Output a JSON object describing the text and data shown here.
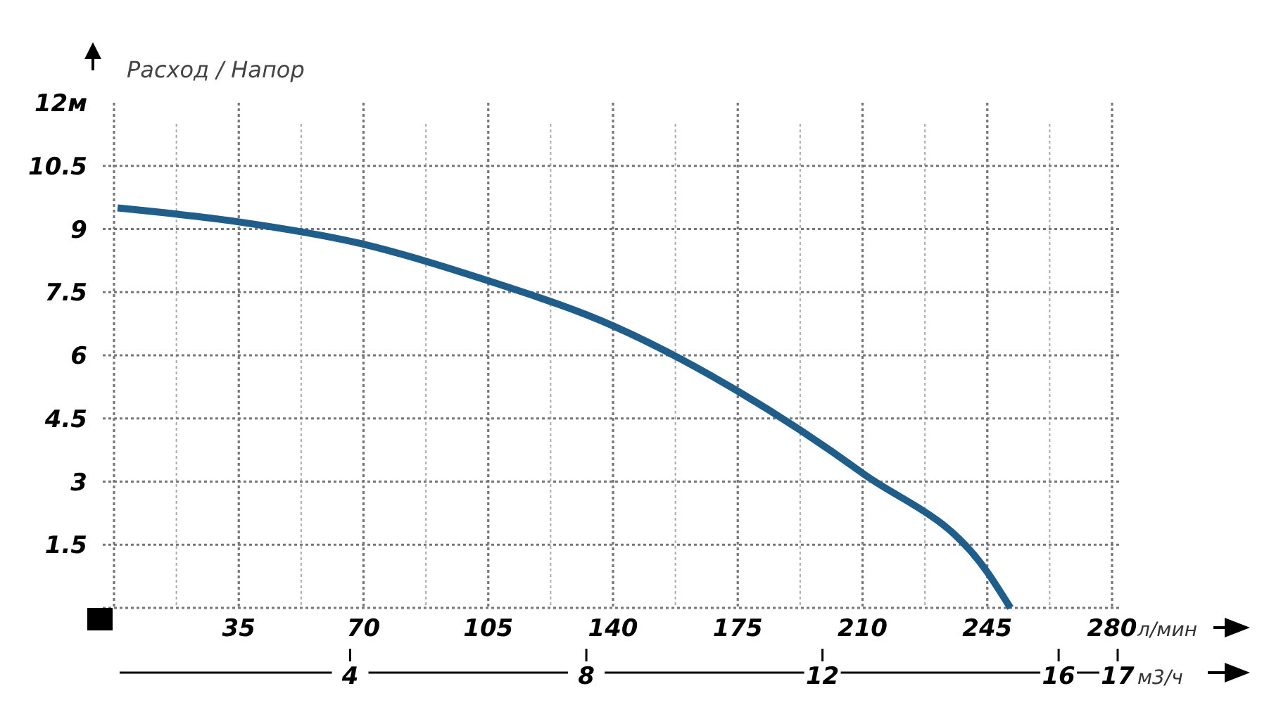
{
  "chart_data": {
    "type": "line",
    "ylabel": "Расход / Напор",
    "xlabel": "л/мин",
    "x2label": "м3/ч",
    "xlim": [
      0,
      280
    ],
    "ylim": [
      0,
      12
    ],
    "x2lim": [
      0,
      17
    ],
    "xticks": [
      {
        "value": 17.5,
        "label": null
      },
      35,
      {
        "value": 52.5,
        "label": null
      },
      70,
      {
        "value": 87.5,
        "label": null
      },
      105,
      {
        "value": 122.5,
        "label": null
      },
      140,
      {
        "value": 157.5,
        "label": null
      },
      175,
      {
        "value": 192.5,
        "label": null
      },
      210,
      {
        "value": 227.5,
        "label": null
      },
      245,
      {
        "value": 262.5,
        "label": null
      },
      280
    ],
    "yticks": [
      {
        "value": 0,
        "label": null
      },
      1.5,
      3,
      4.5,
      6,
      7.5,
      9,
      10.5,
      {
        "value": 12,
        "label": "12м"
      }
    ],
    "x2ticks": [
      4,
      8,
      12,
      16,
      17
    ],
    "grid": true,
    "marker": "none",
    "line_style": "solid",
    "series": [
      {
        "color": "#1f5d8a",
        "x": [
          1,
          35,
          70,
          105,
          140,
          175,
          210,
          245,
          251.5
        ],
        "values": [
          9.5,
          9.17,
          8.64,
          7.77,
          6.7,
          5.15,
          3.2,
          0.85,
          0
        ]
      }
    ]
  }
}
